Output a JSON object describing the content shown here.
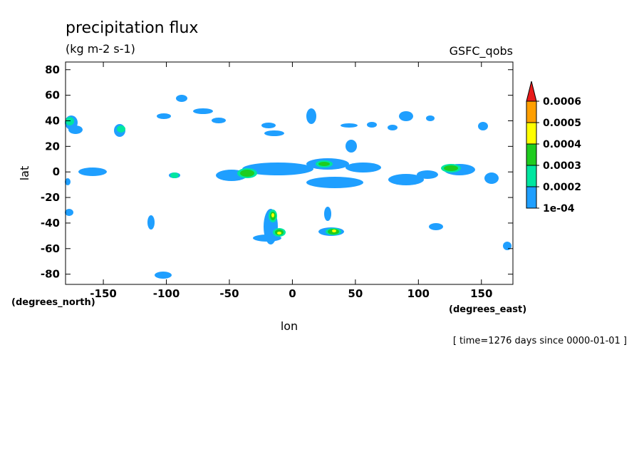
{
  "chart_data": {
    "type": "contour",
    "title": "precipitation flux",
    "subtitle": "(kg m-2 s-1)",
    "dataset": "GSFC_qobs",
    "x_label": "lon",
    "y_label": "lat",
    "x_units": "(degrees_east)",
    "y_units": "(degrees_north)",
    "annotation": "[ time=1276 days since 0000-01-01 ]",
    "xlim": [
      -180,
      175
    ],
    "ylim": [
      -88,
      86
    ],
    "xticks": [
      -150,
      -100,
      -50,
      0,
      50,
      100,
      150
    ],
    "yticks": [
      -80,
      -60,
      -40,
      -20,
      0,
      20,
      40,
      60,
      80
    ],
    "colorbar": {
      "levels": [
        {
          "value": 0.0001,
          "label": "1e-04"
        },
        0.0002,
        0.0003,
        0.0004,
        0.0005,
        0.0006
      ],
      "colors": [
        "#1f9fff",
        "#00e6a0",
        "#1fcc1f",
        "#ffff00",
        "#ff9f00"
      ],
      "over_color": "#e81a1a"
    }
  }
}
